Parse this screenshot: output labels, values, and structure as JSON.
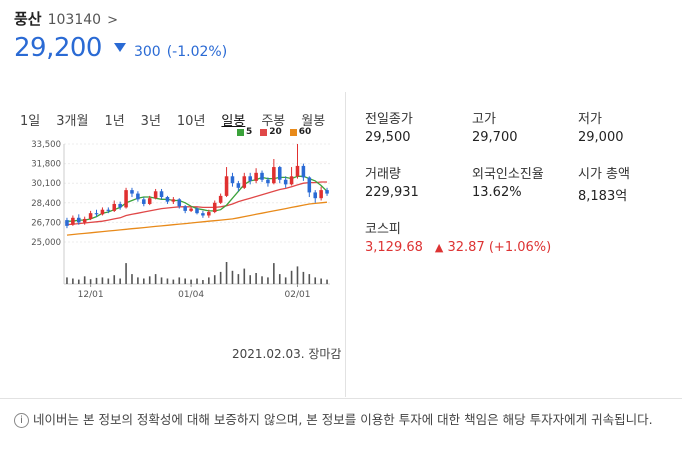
{
  "stock": {
    "name": "풍산",
    "code": "103140",
    "code_chevron": ">",
    "price": "29,200",
    "change": "300",
    "change_rate": "(-1.02%)",
    "direction": "down"
  },
  "tabs": [
    {
      "label": "1일",
      "active": false
    },
    {
      "label": "3개월",
      "active": false
    },
    {
      "label": "1년",
      "active": false
    },
    {
      "label": "3년",
      "active": false
    },
    {
      "label": "10년",
      "active": false
    },
    {
      "label": "일봉",
      "active": true
    },
    {
      "label": "주봉",
      "active": false
    },
    {
      "label": "월봉",
      "active": false
    }
  ],
  "legend": [
    {
      "label": "5",
      "color": "#3ba23b"
    },
    {
      "label": "20",
      "color": "#e04848"
    },
    {
      "label": "60",
      "color": "#e88a1a"
    }
  ],
  "chart_data": {
    "type": "candlestick",
    "y_ticks": [
      "33,500",
      "31,800",
      "30,100",
      "28,400",
      "26,700",
      "25,000"
    ],
    "ylim": [
      25000,
      33500
    ],
    "x_ticks": [
      "12/01",
      "01/04",
      "02/01"
    ],
    "candles": [
      {
        "o": 26900,
        "c": 26400,
        "h": 27100,
        "l": 26200
      },
      {
        "o": 26500,
        "c": 27100,
        "h": 27300,
        "l": 26400
      },
      {
        "o": 27100,
        "c": 26700,
        "h": 27400,
        "l": 26500
      },
      {
        "o": 26700,
        "c": 27000,
        "h": 27200,
        "l": 26500
      },
      {
        "o": 27000,
        "c": 27500,
        "h": 27700,
        "l": 26900
      },
      {
        "o": 27500,
        "c": 27400,
        "h": 27800,
        "l": 27200
      },
      {
        "o": 27400,
        "c": 27800,
        "h": 28000,
        "l": 27300
      },
      {
        "o": 27800,
        "c": 27700,
        "h": 28000,
        "l": 27500
      },
      {
        "o": 27700,
        "c": 28300,
        "h": 28600,
        "l": 27600
      },
      {
        "o": 28300,
        "c": 28000,
        "h": 28500,
        "l": 27800
      },
      {
        "o": 28000,
        "c": 29500,
        "h": 29700,
        "l": 27900
      },
      {
        "o": 29500,
        "c": 29200,
        "h": 29700,
        "l": 28900
      },
      {
        "o": 29200,
        "c": 28700,
        "h": 29400,
        "l": 28500
      },
      {
        "o": 28700,
        "c": 28300,
        "h": 28900,
        "l": 28100
      },
      {
        "o": 28300,
        "c": 28800,
        "h": 29000,
        "l": 28200
      },
      {
        "o": 28800,
        "c": 29400,
        "h": 29600,
        "l": 28700
      },
      {
        "o": 29400,
        "c": 28900,
        "h": 29600,
        "l": 28700
      },
      {
        "o": 28900,
        "c": 28500,
        "h": 29000,
        "l": 28300
      },
      {
        "o": 28500,
        "c": 28700,
        "h": 28900,
        "l": 28300
      },
      {
        "o": 28700,
        "c": 28100,
        "h": 28800,
        "l": 27900
      },
      {
        "o": 28100,
        "c": 27700,
        "h": 28200,
        "l": 27500
      },
      {
        "o": 27700,
        "c": 27900,
        "h": 28100,
        "l": 27600
      },
      {
        "o": 27900,
        "c": 27500,
        "h": 28000,
        "l": 27400
      },
      {
        "o": 27500,
        "c": 27300,
        "h": 27700,
        "l": 27100
      },
      {
        "o": 27300,
        "c": 27600,
        "h": 27800,
        "l": 27100
      },
      {
        "o": 27600,
        "c": 28400,
        "h": 28600,
        "l": 27500
      },
      {
        "o": 28400,
        "c": 29000,
        "h": 29200,
        "l": 28300
      },
      {
        "o": 29000,
        "c": 30700,
        "h": 31500,
        "l": 28900
      },
      {
        "o": 30700,
        "c": 30100,
        "h": 31000,
        "l": 29800
      },
      {
        "o": 30100,
        "c": 29700,
        "h": 30300,
        "l": 29400
      },
      {
        "o": 29700,
        "c": 30700,
        "h": 31000,
        "l": 29600
      },
      {
        "o": 30700,
        "c": 30300,
        "h": 31000,
        "l": 30000
      },
      {
        "o": 30300,
        "c": 31000,
        "h": 31400,
        "l": 30100
      },
      {
        "o": 31000,
        "c": 30400,
        "h": 31200,
        "l": 30200
      },
      {
        "o": 30400,
        "c": 30100,
        "h": 30600,
        "l": 29800
      },
      {
        "o": 30100,
        "c": 31500,
        "h": 32200,
        "l": 30000
      },
      {
        "o": 31500,
        "c": 30400,
        "h": 31600,
        "l": 30100
      },
      {
        "o": 30400,
        "c": 30000,
        "h": 30700,
        "l": 29700
      },
      {
        "o": 30000,
        "c": 30700,
        "h": 31500,
        "l": 29900
      },
      {
        "o": 30700,
        "c": 31600,
        "h": 33500,
        "l": 30500
      },
      {
        "o": 31600,
        "c": 30600,
        "h": 31800,
        "l": 30300
      },
      {
        "o": 30600,
        "c": 29300,
        "h": 30700,
        "l": 28900
      },
      {
        "o": 29300,
        "c": 28800,
        "h": 29500,
        "l": 28400
      },
      {
        "o": 28800,
        "c": 29500,
        "h": 29800,
        "l": 28600
      },
      {
        "o": 29500,
        "c": 29200,
        "h": 29700,
        "l": 29000
      }
    ],
    "ma5": [
      26800,
      26800,
      26900,
      26900,
      27000,
      27200,
      27500,
      27600,
      27800,
      28000,
      28400,
      28600,
      28800,
      28900,
      28900,
      28800,
      28700,
      28700,
      28600,
      28600,
      28400,
      28100,
      27900,
      27800,
      27700,
      27700,
      27800,
      28200,
      28800,
      29400,
      30000,
      30300,
      30400,
      30600,
      30500,
      30500,
      30600,
      30600,
      30500,
      30700,
      30700,
      30500,
      30300,
      29900,
      29400
    ],
    "ma20": [
      26500,
      26550,
      26600,
      26650,
      26700,
      26750,
      26800,
      26900,
      27000,
      27100,
      27300,
      27400,
      27500,
      27600,
      27700,
      27800,
      27900,
      27950,
      28000,
      28050,
      28050,
      28050,
      28050,
      28000,
      28000,
      28000,
      28050,
      28150,
      28300,
      28500,
      28650,
      28800,
      28950,
      29100,
      29250,
      29400,
      29550,
      29650,
      29800,
      29950,
      30100,
      30150,
      30150,
      30200,
      30200
    ],
    "ma60": [
      25600,
      25650,
      25700,
      25750,
      25800,
      25850,
      25900,
      25950,
      26000,
      26050,
      26100,
      26150,
      26200,
      26250,
      26300,
      26350,
      26400,
      26450,
      26500,
      26550,
      26600,
      26650,
      26700,
      26750,
      26800,
      26850,
      26900,
      26950,
      27000,
      27100,
      27200,
      27300,
      27400,
      27500,
      27600,
      27700,
      27800,
      27900,
      28000,
      28100,
      28200,
      28300,
      28350,
      28400,
      28450
    ],
    "volume": [
      30,
      25,
      20,
      35,
      22,
      28,
      30,
      25,
      40,
      25,
      95,
      45,
      30,
      25,
      35,
      45,
      30,
      25,
      20,
      30,
      25,
      20,
      25,
      18,
      30,
      40,
      55,
      100,
      60,
      45,
      70,
      40,
      50,
      35,
      30,
      95,
      45,
      30,
      60,
      80,
      55,
      45,
      30,
      25,
      20
    ]
  },
  "as_of": "2021.02.03. 장마감",
  "stats": [
    {
      "label": "전일종가",
      "value": "29,500",
      "color": "default"
    },
    {
      "label": "고가",
      "value": "29,700",
      "color": "red"
    },
    {
      "label": "저가",
      "value": "29,000",
      "color": "blue"
    },
    {
      "label": "거래량",
      "value": "229,931",
      "color": "default"
    },
    {
      "label": "외국인소진율",
      "value": "13.62%",
      "color": "default"
    },
    {
      "label": "시가 총액",
      "value": "8,183억",
      "color": "default"
    }
  ],
  "kospi": {
    "label": "코스피",
    "value": "3,129.68",
    "up_symbol": "▲",
    "change": "32.87",
    "rate": "(+1.06%)"
  },
  "notice": {
    "icon": "info-icon",
    "text": "네이버는 본 정보의 정확성에 대해 보증하지 않으며, 본 정보를 이용한 투자에 대한 책임은 해당 투자자에게 귀속됩니다."
  }
}
